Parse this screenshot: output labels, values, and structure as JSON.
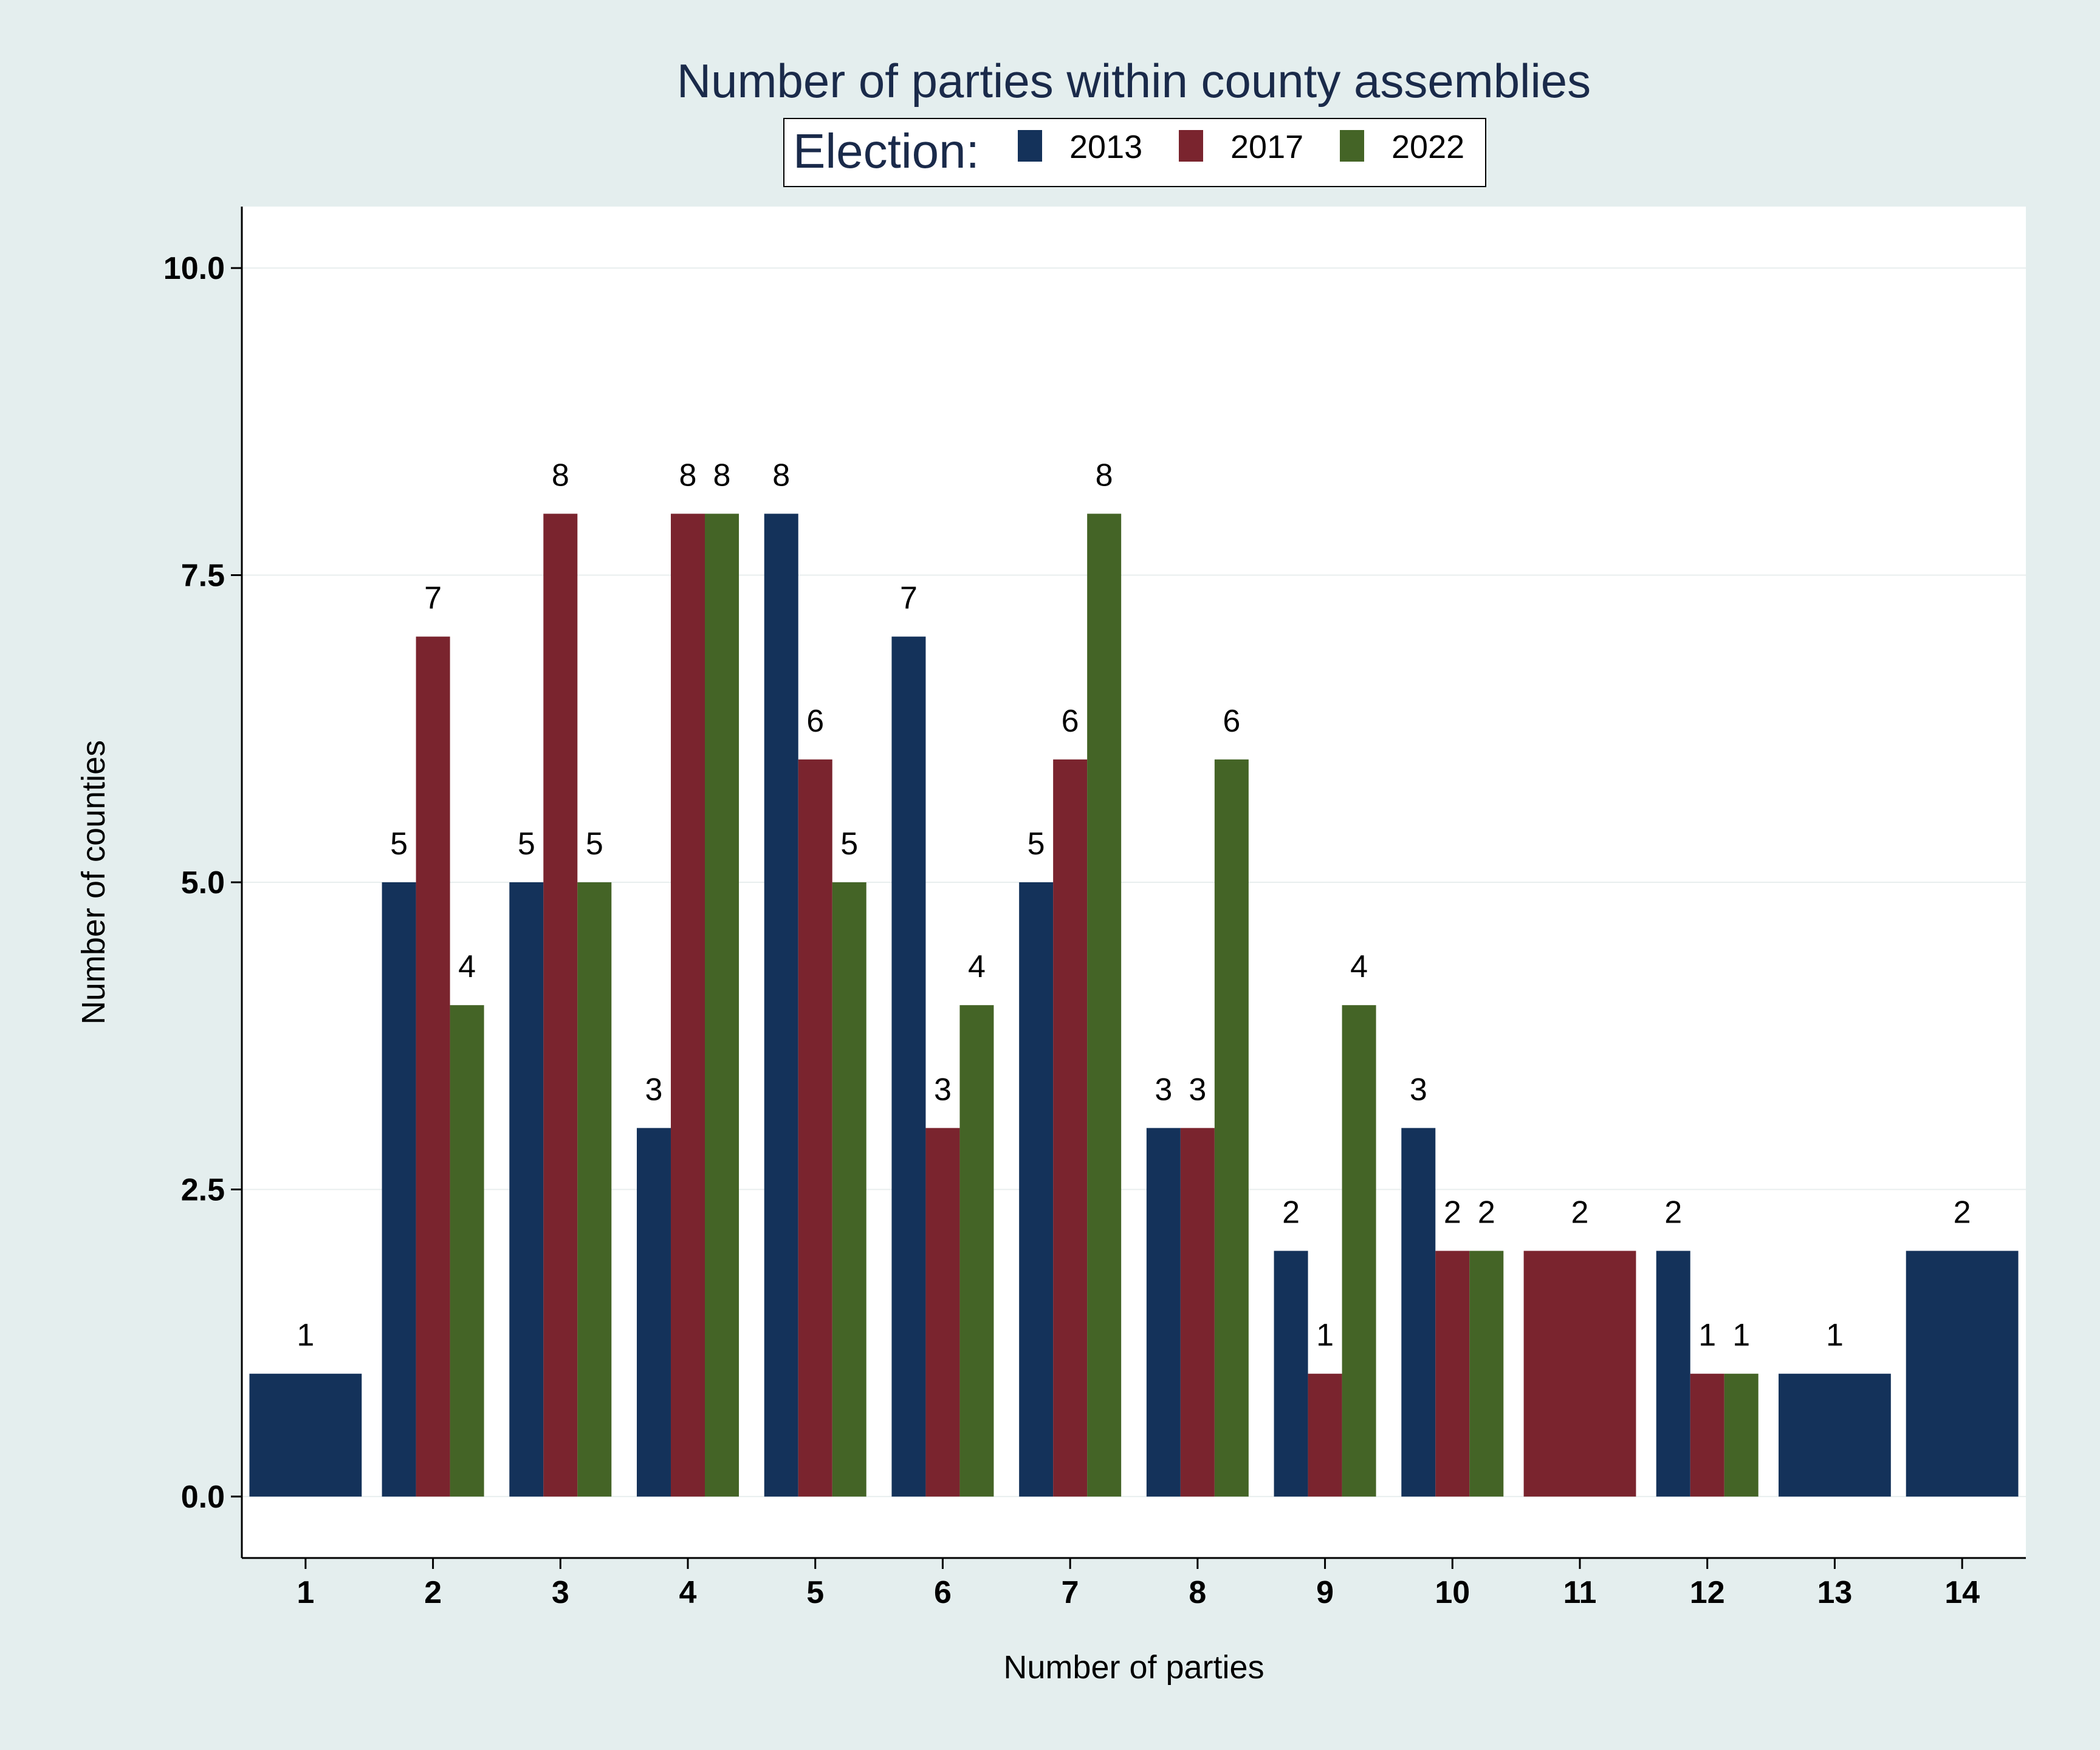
{
  "chart_data": {
    "type": "bar",
    "title": "Number of parties within county assemblies",
    "xlabel": "Number of parties",
    "ylabel": "Number of counties",
    "legend_title": "Election:",
    "legend_position": "top",
    "ylim": [
      -0.5,
      10.5
    ],
    "yticks": [
      "0.0",
      "2.5",
      "5.0",
      "7.5",
      "10.0"
    ],
    "ytick_values": [
      0,
      2.5,
      5,
      7.5,
      10
    ],
    "categories": [
      "1",
      "2",
      "3",
      "4",
      "5",
      "6",
      "7",
      "8",
      "9",
      "10",
      "11",
      "12",
      "13",
      "14"
    ],
    "series": [
      {
        "name": "2013",
        "color": "#14325a",
        "values": [
          1,
          5,
          5,
          3,
          8,
          7,
          5,
          3,
          2,
          3,
          null,
          2,
          1,
          2
        ]
      },
      {
        "name": "2017",
        "color": "#7a242e",
        "values": [
          null,
          7,
          8,
          8,
          6,
          3,
          6,
          3,
          1,
          2,
          2,
          1,
          null,
          null
        ]
      },
      {
        "name": "2022",
        "color": "#446426",
        "values": [
          null,
          4,
          5,
          8,
          5,
          4,
          8,
          6,
          4,
          2,
          null,
          1,
          null,
          null
        ]
      }
    ],
    "grid": true,
    "background_color": "#e4eeee",
    "plot_color": "#ffffff"
  }
}
